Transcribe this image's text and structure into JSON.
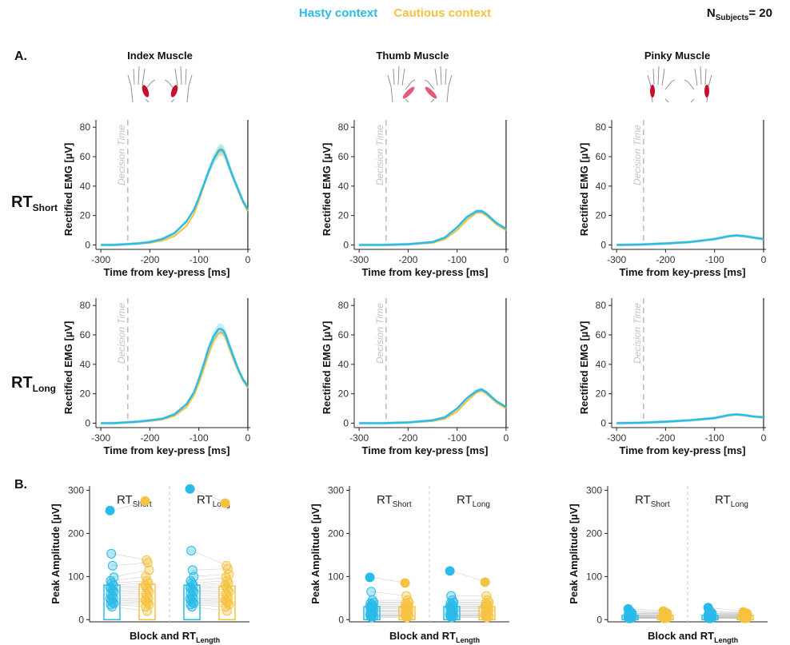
{
  "legend": {
    "hasty_label": "Hasty context",
    "cautious_label": "Cautious context",
    "hasty_color": "#2ABBE8",
    "cautious_color": "#F5C342"
  },
  "n_subjects": {
    "prefix": "N",
    "sub": "Subjects",
    "value": "= 20"
  },
  "panel_labels": {
    "a": "A.",
    "b": "B."
  },
  "row_labels": {
    "short": {
      "main": "RT",
      "sub": "Short"
    },
    "long": {
      "main": "RT",
      "sub": "Long"
    }
  },
  "columns": [
    {
      "title": "Index Muscle",
      "hand_highlight": "index"
    },
    {
      "title": "Thumb Muscle",
      "hand_highlight": "thumb"
    },
    {
      "title": "Pinky Muscle",
      "hand_highlight": "pinky"
    }
  ],
  "decision_label": "Decision Time",
  "chart_data": [
    {
      "type": "line",
      "panel": "A",
      "muscle": "Index Muscle",
      "rt": "Short",
      "xlabel": "Time from key-press [ms]",
      "ylabel": "Rectified EMG [µV]",
      "xlim": [
        -310,
        5
      ],
      "ylim": [
        -3,
        85
      ],
      "xticks": [
        -300,
        -200,
        -100,
        0
      ],
      "yticks": [
        0,
        20,
        40,
        60,
        80
      ],
      "decision_time": -245,
      "x": [
        -300,
        -275,
        -250,
        -225,
        -200,
        -175,
        -150,
        -125,
        -110,
        -100,
        -90,
        -80,
        -70,
        -60,
        -55,
        -50,
        -45,
        -40,
        -30,
        -20,
        -10,
        0
      ],
      "series": [
        {
          "name": "Hasty context",
          "values": [
            0,
            0,
            0.5,
            1,
            2,
            4,
            8,
            16,
            24,
            32,
            41,
            50,
            58,
            64,
            65,
            64,
            60,
            55,
            46,
            38,
            30,
            24
          ]
        },
        {
          "name": "Cautious context",
          "values": [
            0,
            0,
            0.5,
            1,
            1.5,
            3,
            6,
            13,
            21,
            30,
            40,
            50,
            58,
            63,
            64,
            63,
            60,
            55,
            46,
            37,
            29,
            23
          ]
        }
      ]
    },
    {
      "type": "line",
      "panel": "A",
      "muscle": "Thumb Muscle",
      "rt": "Short",
      "xlabel": "Time from key-press [ms]",
      "ylabel": "Rectified EMG [µV]",
      "xlim": [
        -310,
        5
      ],
      "ylim": [
        -3,
        85
      ],
      "xticks": [
        -300,
        -200,
        -100,
        0
      ],
      "yticks": [
        0,
        20,
        40,
        60,
        80
      ],
      "decision_time": -245,
      "x": [
        -300,
        -250,
        -200,
        -150,
        -125,
        -100,
        -80,
        -60,
        -50,
        -40,
        -20,
        0
      ],
      "series": [
        {
          "name": "Hasty context",
          "values": [
            0,
            0,
            0.5,
            2,
            5,
            12,
            19,
            23,
            23,
            21,
            15,
            11
          ]
        },
        {
          "name": "Cautious context",
          "values": [
            0,
            0,
            0.5,
            1.5,
            4,
            10,
            17,
            22,
            22,
            20,
            14,
            10
          ]
        }
      ]
    },
    {
      "type": "line",
      "panel": "A",
      "muscle": "Pinky Muscle",
      "rt": "Short",
      "xlabel": "Time from key-press [ms]",
      "ylabel": "Rectified EMG [µV]",
      "xlim": [
        -310,
        5
      ],
      "ylim": [
        -3,
        85
      ],
      "xticks": [
        -300,
        -200,
        -100,
        0
      ],
      "yticks": [
        0,
        20,
        40,
        60,
        80
      ],
      "decision_time": -245,
      "x": [
        -300,
        -250,
        -200,
        -150,
        -100,
        -70,
        -55,
        -40,
        -20,
        0
      ],
      "series": [
        {
          "name": "Hasty context",
          "values": [
            0,
            0.3,
            1,
            2,
            4,
            6,
            6.5,
            6,
            5,
            4
          ]
        },
        {
          "name": "Cautious context",
          "values": [
            0,
            0.3,
            1,
            2,
            4,
            6,
            6.3,
            6,
            5,
            4
          ]
        }
      ]
    },
    {
      "type": "line",
      "panel": "A",
      "muscle": "Index Muscle",
      "rt": "Long",
      "xlabel": "Time from key-press [ms]",
      "ylabel": "Rectified EMG [µV]",
      "xlim": [
        -310,
        5
      ],
      "ylim": [
        -3,
        85
      ],
      "xticks": [
        -300,
        -200,
        -100,
        0
      ],
      "yticks": [
        0,
        20,
        40,
        60,
        80
      ],
      "decision_time": -245,
      "x": [
        -300,
        -275,
        -250,
        -225,
        -200,
        -175,
        -150,
        -125,
        -110,
        -100,
        -90,
        -80,
        -70,
        -60,
        -55,
        -50,
        -45,
        -40,
        -30,
        -20,
        -10,
        0
      ],
      "series": [
        {
          "name": "Hasty context",
          "values": [
            0,
            0,
            0.5,
            1,
            2,
            3,
            6,
            13,
            21,
            30,
            40,
            51,
            59,
            64,
            64,
            63,
            60,
            55,
            46,
            37,
            30,
            25
          ]
        },
        {
          "name": "Cautious context",
          "values": [
            0,
            0,
            0.5,
            1,
            1.5,
            2.5,
            5,
            11,
            19,
            27,
            37,
            47,
            56,
            61,
            62,
            61,
            58,
            53,
            44,
            36,
            29,
            24
          ]
        }
      ]
    },
    {
      "type": "line",
      "panel": "A",
      "muscle": "Thumb Muscle",
      "rt": "Long",
      "xlabel": "Time from key-press [ms]",
      "ylabel": "Rectified EMG [µV]",
      "xlim": [
        -310,
        5
      ],
      "ylim": [
        -3,
        85
      ],
      "xticks": [
        -300,
        -200,
        -100,
        0
      ],
      "yticks": [
        0,
        20,
        40,
        60,
        80
      ],
      "decision_time": -245,
      "x": [
        -300,
        -250,
        -200,
        -150,
        -125,
        -100,
        -80,
        -60,
        -50,
        -40,
        -20,
        0
      ],
      "series": [
        {
          "name": "Hasty context",
          "values": [
            0,
            0,
            0.5,
            2,
            4,
            10,
            17,
            22,
            23,
            21,
            15,
            11
          ]
        },
        {
          "name": "Cautious context",
          "values": [
            0,
            0,
            0.5,
            1.5,
            3,
            8,
            15,
            21,
            22,
            20,
            14,
            10
          ]
        }
      ]
    },
    {
      "type": "line",
      "panel": "A",
      "muscle": "Pinky Muscle",
      "rt": "Long",
      "xlabel": "Time from key-press [ms]",
      "ylabel": "Rectified EMG [µV]",
      "xlim": [
        -310,
        5
      ],
      "ylim": [
        -3,
        85
      ],
      "xticks": [
        -300,
        -200,
        -100,
        0
      ],
      "yticks": [
        0,
        20,
        40,
        60,
        80
      ],
      "decision_time": -245,
      "x": [
        -300,
        -250,
        -200,
        -150,
        -100,
        -70,
        -55,
        -40,
        -20,
        0
      ],
      "series": [
        {
          "name": "Hasty context",
          "values": [
            0,
            0.3,
            1,
            2,
            3.5,
            5.5,
            6,
            5.5,
            4.5,
            4
          ]
        },
        {
          "name": "Cautious context",
          "values": [
            0,
            0.3,
            1,
            2,
            3.5,
            5.5,
            5.8,
            5.5,
            4.5,
            4
          ]
        }
      ]
    },
    {
      "type": "bar",
      "panel": "B",
      "muscle": "Index Muscle",
      "xlabel": "Block and RT",
      "xlabel_sub": "Length",
      "ylabel": "Peak Amplitude [µV]",
      "ylim": [
        -5,
        310
      ],
      "yticks": [
        0,
        100,
        200,
        300
      ],
      "groups": [
        {
          "label": "RT",
          "label_sub": "Short",
          "hasty": {
            "mean": 80,
            "points": [
              253,
              153,
              125,
              98,
              90,
              85,
              80,
              75,
              72,
              68,
              65,
              60,
              55,
              50,
              48,
              45,
              40,
              38,
              35,
              30
            ]
          },
          "cautious": {
            "mean": 82,
            "points": [
              275,
              138,
              132,
              115,
              100,
              90,
              85,
              80,
              75,
              70,
              65,
              60,
              55,
              50,
              45,
              42,
              40,
              35,
              30,
              20
            ]
          }
        },
        {
          "label": "RT",
          "label_sub": "Long",
          "hasty": {
            "mean": 80,
            "points": [
              303,
              160,
              115,
              100,
              90,
              85,
              80,
              75,
              72,
              68,
              65,
              60,
              55,
              50,
              48,
              45,
              40,
              38,
              35,
              30
            ]
          },
          "cautious": {
            "mean": 78,
            "points": [
              270,
              125,
              118,
              105,
              98,
              90,
              85,
              80,
              75,
              70,
              65,
              60,
              55,
              50,
              45,
              42,
              40,
              35,
              30,
              20
            ]
          }
        }
      ]
    },
    {
      "type": "bar",
      "panel": "B",
      "muscle": "Thumb Muscle",
      "xlabel": "Block and RT",
      "xlabel_sub": "Length",
      "ylabel": "Peak Amplitude [µV]",
      "ylim": [
        -5,
        310
      ],
      "yticks": [
        0,
        100,
        200,
        300
      ],
      "groups": [
        {
          "label": "RT",
          "label_sub": "Short",
          "hasty": {
            "mean": 30,
            "points": [
              98,
              65,
              45,
              40,
              38,
              35,
              32,
              30,
              28,
              25,
              22,
              20,
              18,
              15,
              12,
              10,
              10,
              8,
              8,
              5
            ]
          },
          "cautious": {
            "mean": 30,
            "points": [
              85,
              55,
              45,
              40,
              38,
              35,
              32,
              30,
              28,
              25,
              22,
              20,
              18,
              15,
              12,
              10,
              10,
              8,
              8,
              5
            ]
          }
        },
        {
          "label": "RT",
          "label_sub": "Long",
          "hasty": {
            "mean": 30,
            "points": [
              113,
              55,
              45,
              40,
              38,
              35,
              32,
              30,
              28,
              25,
              22,
              20,
              18,
              15,
              12,
              10,
              10,
              8,
              8,
              5
            ]
          },
          "cautious": {
            "mean": 30,
            "points": [
              87,
              55,
              45,
              40,
              38,
              35,
              32,
              30,
              28,
              25,
              22,
              20,
              18,
              15,
              12,
              10,
              10,
              8,
              8,
              5
            ]
          }
        }
      ]
    },
    {
      "type": "bar",
      "panel": "B",
      "muscle": "Pinky Muscle",
      "xlabel": "Block and RT",
      "xlabel_sub": "Length",
      "ylabel": "Peak Amplitude [µV]",
      "ylim": [
        -5,
        310
      ],
      "yticks": [
        0,
        100,
        200,
        300
      ],
      "groups": [
        {
          "label": "RT",
          "label_sub": "Short",
          "hasty": {
            "mean": 10,
            "points": [
              25,
              20,
              18,
              15,
              14,
              12,
              12,
              10,
              10,
              9,
              8,
              8,
              7,
              6,
              5,
              5,
              4,
              4,
              3,
              3
            ]
          },
          "cautious": {
            "mean": 10,
            "points": [
              20,
              18,
              16,
              15,
              14,
              12,
              12,
              10,
              10,
              9,
              8,
              8,
              7,
              6,
              5,
              5,
              4,
              4,
              3,
              3
            ]
          }
        },
        {
          "label": "RT",
          "label_sub": "Long",
          "hasty": {
            "mean": 10,
            "points": [
              28,
              20,
              18,
              15,
              14,
              12,
              12,
              10,
              10,
              9,
              8,
              8,
              7,
              6,
              5,
              5,
              4,
              4,
              3,
              3
            ]
          },
          "cautious": {
            "mean": 10,
            "points": [
              18,
              16,
              15,
              14,
              13,
              12,
              12,
              10,
              10,
              9,
              8,
              8,
              7,
              6,
              5,
              5,
              4,
              4,
              3,
              3
            ]
          }
        }
      ]
    }
  ]
}
